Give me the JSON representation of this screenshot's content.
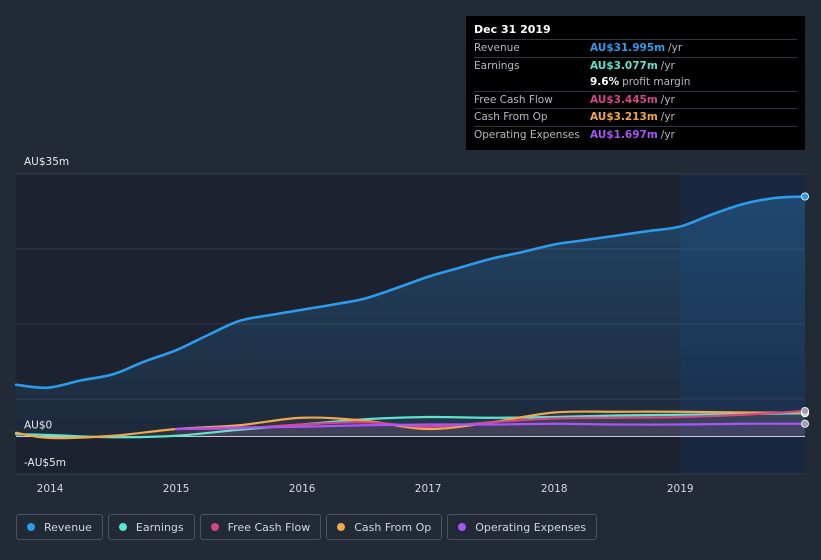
{
  "tooltip": {
    "date": "Dec 31 2019",
    "rows": [
      {
        "label": "Revenue",
        "value": "AU$31.995m",
        "unit": "/yr",
        "color": "#2e9bea"
      },
      {
        "label": "Earnings",
        "value": "AU$3.077m",
        "unit": "/yr",
        "color": "#5fe3cf"
      },
      {
        "label": "",
        "value": "9.6%",
        "unit": "profit margin",
        "color": "#ffffff"
      },
      {
        "label": "Free Cash Flow",
        "value": "AU$3.445m",
        "unit": "/yr",
        "color": "#d4468a"
      },
      {
        "label": "Cash From Op",
        "value": "AU$3.213m",
        "unit": "/yr",
        "color": "#f0a84e"
      },
      {
        "label": "Operating Expenses",
        "value": "AU$1.697m",
        "unit": "/yr",
        "color": "#a855f7"
      }
    ]
  },
  "legend": [
    {
      "label": "Revenue",
      "color": "#2e9bea"
    },
    {
      "label": "Earnings",
      "color": "#5fe3cf"
    },
    {
      "label": "Free Cash Flow",
      "color": "#d4468a"
    },
    {
      "label": "Cash From Op",
      "color": "#f0a84e"
    },
    {
      "label": "Operating Expenses",
      "color": "#a855f7"
    }
  ],
  "chart_data": {
    "type": "line",
    "ylim": [
      -5,
      35
    ],
    "y_tick_labels": [
      "AU$35m",
      "AU$0",
      "-AU$5m"
    ],
    "x_tick_labels": [
      "2014",
      "2015",
      "2016",
      "2017",
      "2018",
      "2019"
    ],
    "x_ticks": [
      2014,
      2015,
      2016,
      2017,
      2018,
      2019
    ],
    "xlim": [
      2013.73,
      2019.99
    ],
    "highlight_start": 2019.0,
    "grid": true,
    "series": [
      {
        "name": "Revenue",
        "color": "#2e9bea",
        "fill": true,
        "x": [
          2013.73,
          2013.98,
          2014.25,
          2014.5,
          2014.75,
          2015.0,
          2015.25,
          2015.5,
          2015.75,
          2016.0,
          2016.25,
          2016.5,
          2016.75,
          2017.0,
          2017.25,
          2017.5,
          2017.75,
          2018.0,
          2018.25,
          2018.5,
          2018.75,
          2019.0,
          2019.25,
          2019.5,
          2019.75,
          2019.99
        ],
        "values": [
          6.9,
          6.5,
          7.5,
          8.3,
          10.0,
          11.5,
          13.5,
          15.4,
          16.2,
          16.9,
          17.6,
          18.4,
          19.8,
          21.3,
          22.5,
          23.7,
          24.6,
          25.6,
          26.2,
          26.8,
          27.4,
          28.0,
          29.6,
          31.0,
          31.8,
          32.0
        ]
      },
      {
        "name": "Earnings",
        "color": "#5fe3cf",
        "fill": false,
        "x": [
          2013.73,
          2014.0,
          2014.5,
          2015.0,
          2015.5,
          2016.0,
          2016.5,
          2017.0,
          2017.5,
          2018.0,
          2018.5,
          2019.0,
          2019.5,
          2019.99
        ],
        "values": [
          0.3,
          0.2,
          -0.1,
          0.1,
          0.9,
          1.6,
          2.3,
          2.6,
          2.5,
          2.6,
          2.8,
          2.9,
          3.0,
          3.1
        ]
      },
      {
        "name": "Free Cash Flow",
        "color": "#d4468a",
        "fill": false,
        "x": [
          2015.0,
          2015.5,
          2016.0,
          2016.5,
          2017.0,
          2017.5,
          2018.0,
          2018.5,
          2019.0,
          2019.5,
          2019.99
        ],
        "values": [
          1.0,
          1.1,
          1.6,
          1.9,
          1.3,
          1.9,
          2.4,
          2.5,
          2.6,
          2.9,
          3.4
        ]
      },
      {
        "name": "Cash From Op",
        "color": "#f0a84e",
        "fill": false,
        "x": [
          2013.73,
          2014.0,
          2014.5,
          2015.0,
          2015.5,
          2016.0,
          2016.5,
          2017.0,
          2017.5,
          2018.0,
          2018.5,
          2019.0,
          2019.5,
          2019.99
        ],
        "values": [
          0.5,
          -0.2,
          0.1,
          1.0,
          1.5,
          2.5,
          2.1,
          1.0,
          1.9,
          3.2,
          3.3,
          3.3,
          3.2,
          3.2
        ]
      },
      {
        "name": "Operating Expenses",
        "color": "#a855f7",
        "fill": false,
        "x": [
          2015.0,
          2015.5,
          2016.0,
          2016.5,
          2017.0,
          2017.5,
          2018.0,
          2018.5,
          2019.0,
          2019.5,
          2019.99
        ],
        "values": [
          1.0,
          1.2,
          1.3,
          1.5,
          1.6,
          1.6,
          1.7,
          1.6,
          1.6,
          1.7,
          1.7
        ]
      }
    ]
  }
}
